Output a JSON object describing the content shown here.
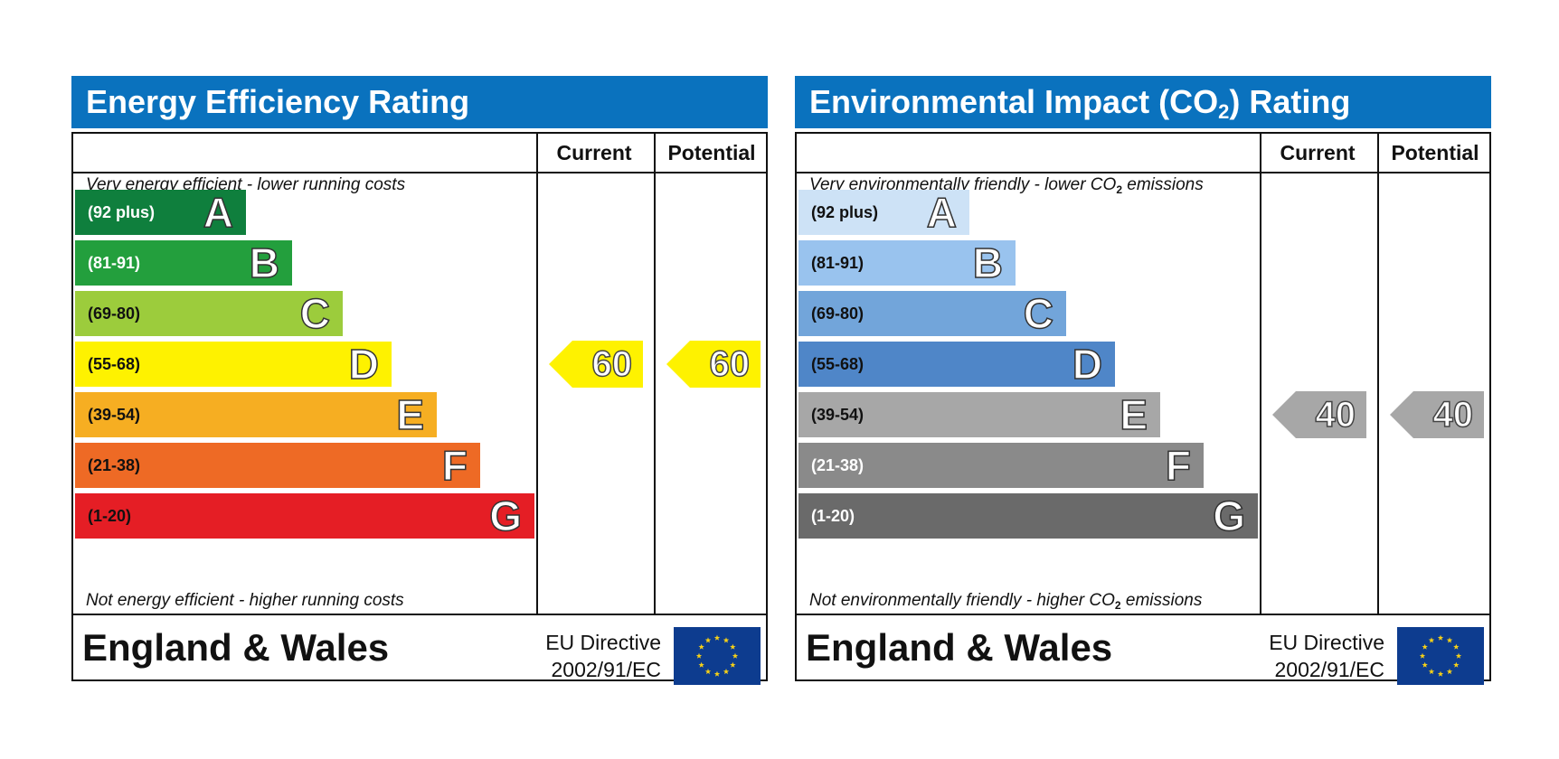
{
  "chart_data": [
    {
      "type": "bar",
      "title": "Energy Efficiency Rating",
      "columns": [
        "Current",
        "Potential"
      ],
      "top_note": "Very energy efficient - lower running costs",
      "bottom_note": "Not energy efficient - higher running costs",
      "bands": [
        {
          "range": "(92 plus)",
          "letter": "A",
          "color": "#0f7f3d",
          "text_color": "#ffffff"
        },
        {
          "range": "(81-91)",
          "letter": "B",
          "color": "#239f3d",
          "text_color": "#ffffff"
        },
        {
          "range": "(69-80)",
          "letter": "C",
          "color": "#9ccc3c",
          "text_color": "#111111"
        },
        {
          "range": "(55-68)",
          "letter": "D",
          "color": "#fef200",
          "text_color": "#111111"
        },
        {
          "range": "(39-54)",
          "letter": "E",
          "color": "#f6ae22",
          "text_color": "#111111"
        },
        {
          "range": "(21-38)",
          "letter": "F",
          "color": "#ee6a25",
          "text_color": "#111111"
        },
        {
          "range": "(1-20)",
          "letter": "G",
          "color": "#e51e25",
          "text_color": "#111111"
        }
      ],
      "current": 60,
      "potential": 60,
      "marker_color": "#fef200",
      "footer_country": "England & Wales",
      "footer_directive_line1": "EU Directive",
      "footer_directive_line2": "2002/91/EC"
    },
    {
      "type": "bar",
      "title": "Environmental Impact (CO",
      "title_sub": "2",
      "title_end": ") Rating",
      "columns": [
        "Current",
        "Potential"
      ],
      "top_note": "Very environmentally friendly - lower CO",
      "top_note_sub": "2",
      "top_note_end": " emissions",
      "bottom_note": "Not environmentally friendly - higher CO",
      "bottom_note_sub": "2",
      "bottom_note_end": " emissions",
      "bands": [
        {
          "range": "(92 plus)",
          "letter": "A",
          "color": "#cde2f6",
          "text_color": "#111111"
        },
        {
          "range": "(81-91)",
          "letter": "B",
          "color": "#99c3ee",
          "text_color": "#111111"
        },
        {
          "range": "(69-80)",
          "letter": "C",
          "color": "#72a5da",
          "text_color": "#111111"
        },
        {
          "range": "(55-68)",
          "letter": "D",
          "color": "#4f86c8",
          "text_color": "#111111"
        },
        {
          "range": "(39-54)",
          "letter": "E",
          "color": "#a7a7a7",
          "text_color": "#111111"
        },
        {
          "range": "(21-38)",
          "letter": "F",
          "color": "#8a8a8a",
          "text_color": "#ffffff"
        },
        {
          "range": "(1-20)",
          "letter": "G",
          "color": "#6a6a6a",
          "text_color": "#ffffff"
        }
      ],
      "current": 40,
      "potential": 40,
      "marker_color": "#a7a7a7",
      "footer_country": "England & Wales",
      "footer_directive_line1": "EU Directive",
      "footer_directive_line2": "2002/91/EC"
    }
  ]
}
